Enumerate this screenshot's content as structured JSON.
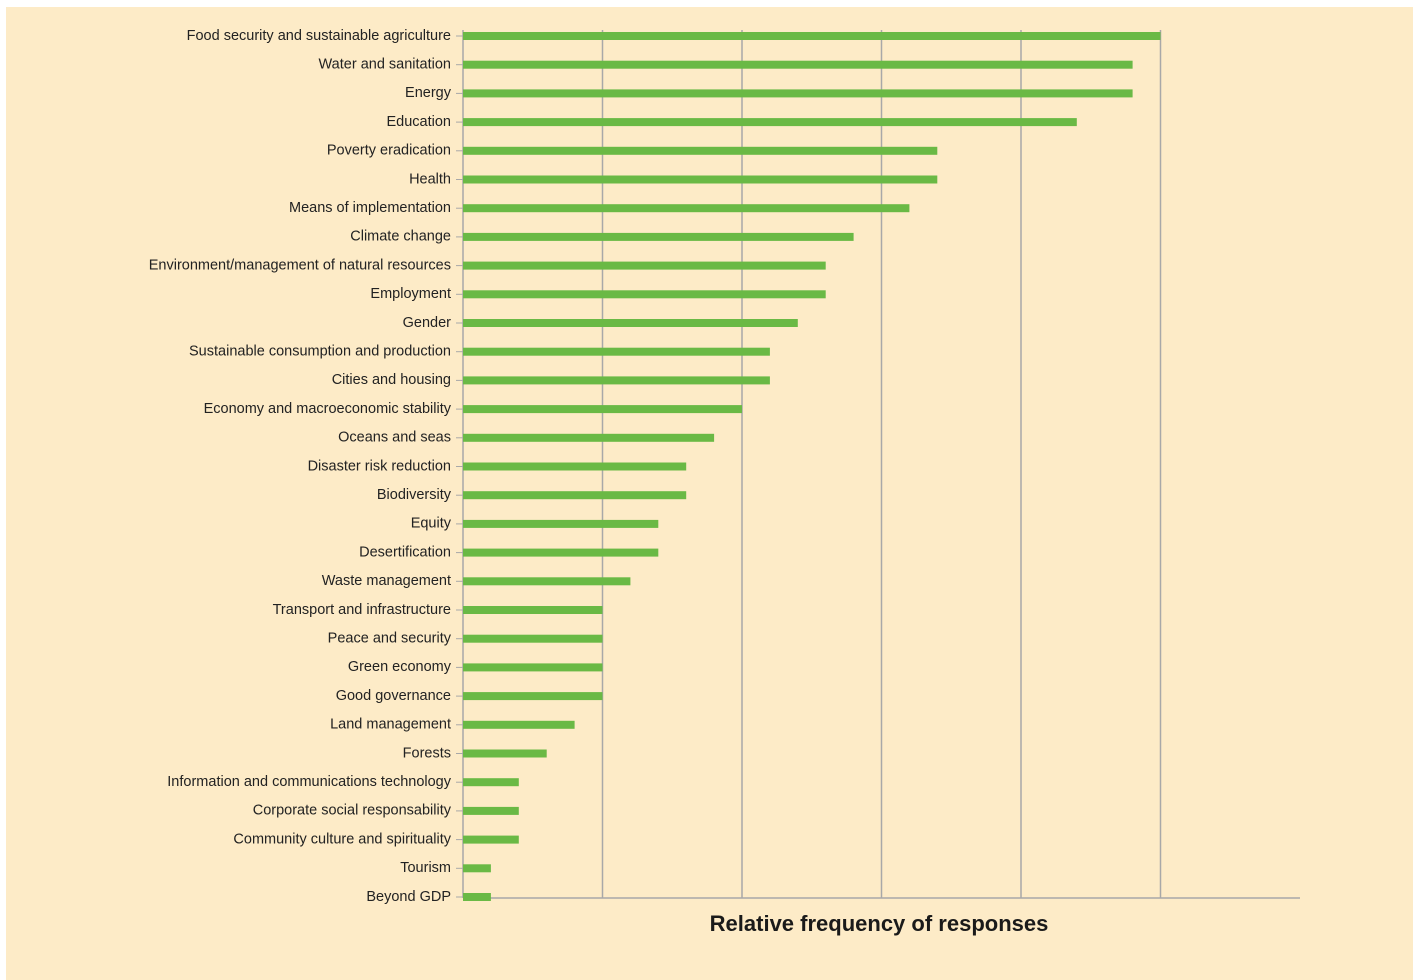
{
  "chart_data": {
    "type": "barh",
    "xlabel": "Relative frequency of responses",
    "categories": [
      "Food security and sustainable agriculture",
      "Water and sanitation",
      "Energy",
      "Education",
      "Poverty eradication",
      "Health",
      "Means of implementation",
      "Climate change",
      "Environment/management of natural resources",
      "Employment",
      "Gender",
      "Sustainable consumption and production",
      "Cities and housing",
      "Economy and macroeconomic stability",
      "Oceans and seas",
      "Disaster risk reduction",
      "Biodiversity",
      "Equity",
      "Desertification",
      "Waste management",
      "Transport and infrastructure",
      "Peace and security",
      "Green economy",
      "Good governance",
      "Land management",
      "Forests",
      "Information and communications technology",
      "Corporate social responsability",
      "Community culture and spirituality",
      "Tourism",
      "Beyond GDP"
    ],
    "values": [
      5.0,
      4.8,
      4.8,
      4.4,
      3.4,
      3.4,
      3.2,
      2.8,
      2.6,
      2.6,
      2.4,
      2.2,
      2.2,
      2.0,
      1.8,
      1.6,
      1.6,
      1.4,
      1.4,
      1.2,
      1.0,
      1.0,
      1.0,
      1.0,
      0.8,
      0.6,
      0.4,
      0.4,
      0.4,
      0.2,
      0.2
    ],
    "color": "#6ab945",
    "xlim": [
      0,
      6
    ],
    "gridlines": [
      1,
      2,
      3,
      4,
      5
    ],
    "grid": true
  }
}
